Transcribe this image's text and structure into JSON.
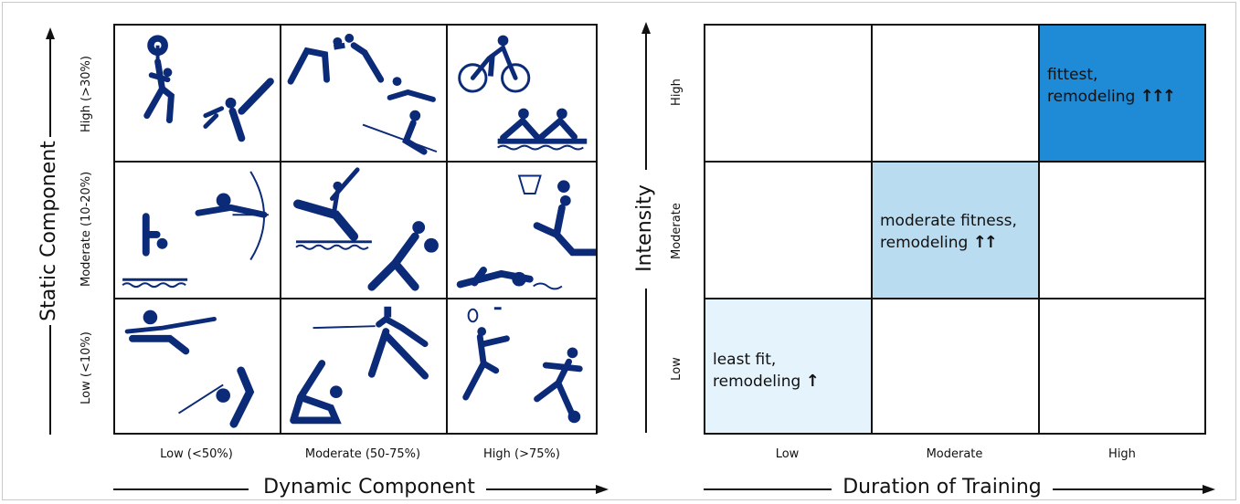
{
  "left_panel": {
    "y_axis_title": "Static Component",
    "x_axis_title": "Dynamic Component",
    "row_labels": [
      "High (>30%)",
      "Moderate (10-20%)",
      "Low (<10%)"
    ],
    "col_labels": [
      "Low (<50%)",
      "Moderate (50-75%)",
      "High (>75%)"
    ],
    "cells": [
      [
        "weightlifting-karate-icons",
        "wrestling-gymnastics-sailing-icons",
        "cycling-rowing-icons"
      ],
      [
        "diving-archery-icons",
        "surfing-boxing-icons",
        "basketball-swimming-icons"
      ],
      [
        "shooting-golf-icons",
        "fencing-baseball-icons",
        "badminton-athletics-icons"
      ]
    ]
  },
  "right_panel": {
    "y_axis_title": "Intensity",
    "x_axis_title": "Duration of Training",
    "row_labels": [
      "High",
      "Moderate",
      "Low"
    ],
    "col_labels": [
      "Low",
      "Moderate",
      "High"
    ],
    "highlights": {
      "fittest": {
        "line1": "fittest,",
        "line2": "remodeling",
        "arrows": "↑↑↑",
        "color": "#1f8ad6"
      },
      "moderate": {
        "line1": "moderate fitness,",
        "line2": "remodeling",
        "arrows": "↑↑",
        "color": "#b9dcf1"
      },
      "least": {
        "line1": "least fit,",
        "line2": "remodeling",
        "arrows": "↑",
        "color": "#e4f3fc"
      }
    }
  },
  "colors": {
    "pictogram": "#0b2a78",
    "grid": "#111111"
  }
}
